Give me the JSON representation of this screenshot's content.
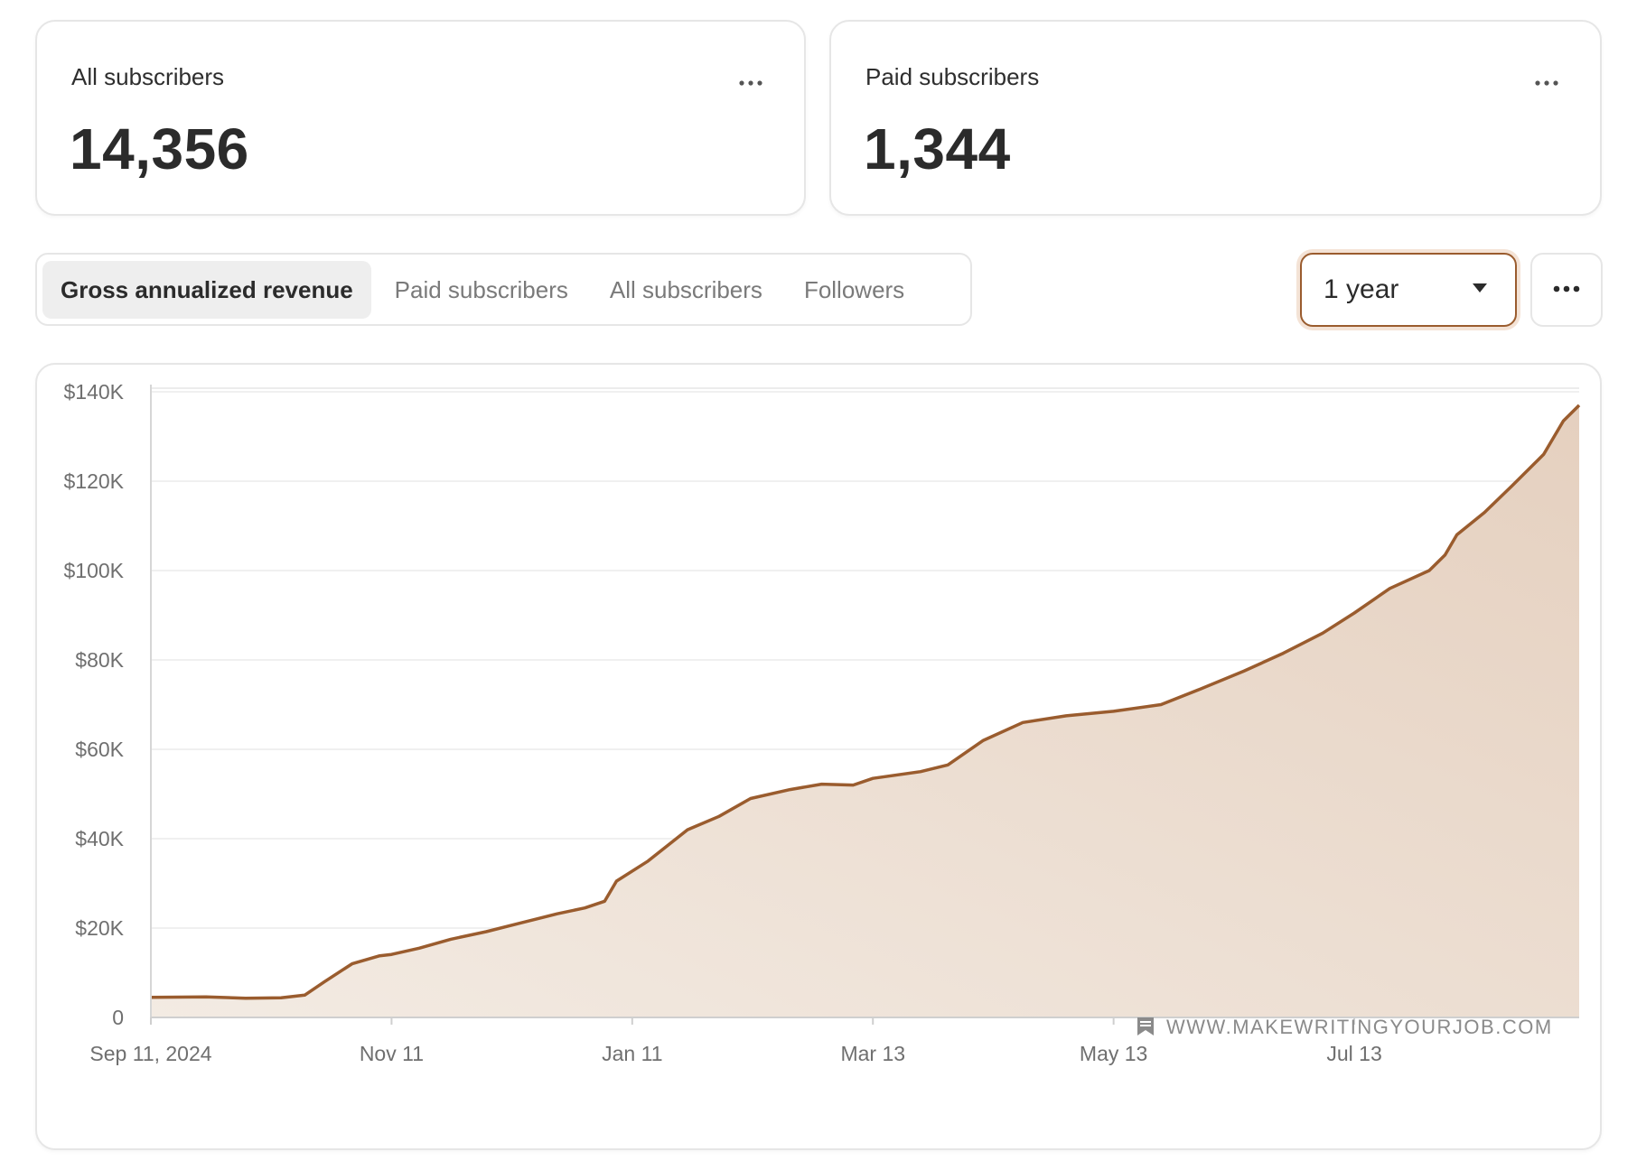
{
  "stats": [
    {
      "title": "All subscribers",
      "value": "14,356"
    },
    {
      "title": "Paid subscribers",
      "value": "1,344"
    }
  ],
  "tabs": [
    {
      "label": "Gross annualized revenue",
      "active": true
    },
    {
      "label": "Paid subscribers",
      "active": false
    },
    {
      "label": "All subscribers",
      "active": false
    },
    {
      "label": "Followers",
      "active": false
    }
  ],
  "range_select": {
    "value": "1 year"
  },
  "colors": {
    "line": "#9a5c2e",
    "fill_top": "#e5d0bf",
    "fill_bottom": "#f3ebe3",
    "grid": "#ececec",
    "accent_border": "#9a5c2e"
  },
  "watermark": "WWW.MAKEWRITINGYOURJOB.COM",
  "chart_data": {
    "type": "area",
    "ylim": [
      0,
      140000
    ],
    "y_ticks": [
      0,
      20000,
      40000,
      60000,
      80000,
      100000,
      120000,
      140000
    ],
    "y_tick_labels": [
      "0",
      "$20K",
      "$40K",
      "$60K",
      "$80K",
      "$100K",
      "$120K",
      "$140K"
    ],
    "x_range": [
      "2024-09-11",
      "2025-09-08"
    ],
    "x_ticks": [
      "2024-09-11",
      "2024-11-11",
      "2025-01-11",
      "2025-03-13",
      "2025-05-13",
      "2025-07-13"
    ],
    "x_tick_labels": [
      "Sep 11, 2024",
      "Nov 11",
      "Jan 11",
      "Mar 13",
      "May 13",
      "Jul 13"
    ],
    "grid": true,
    "series": [
      {
        "points": [
          [
            "2024-09-11",
            4500
          ],
          [
            "2024-09-25",
            4600
          ],
          [
            "2024-10-05",
            4300
          ],
          [
            "2024-10-14",
            4400
          ],
          [
            "2024-10-20",
            5000
          ],
          [
            "2024-10-25",
            8000
          ],
          [
            "2024-11-01",
            12000
          ],
          [
            "2024-11-08",
            13800
          ],
          [
            "2024-11-11",
            14100
          ],
          [
            "2024-11-18",
            15500
          ],
          [
            "2024-11-26",
            17500
          ],
          [
            "2024-12-05",
            19200
          ],
          [
            "2024-12-14",
            21200
          ],
          [
            "2024-12-23",
            23200
          ],
          [
            "2024-12-30",
            24500
          ],
          [
            "2025-01-04",
            26000
          ],
          [
            "2025-01-07",
            30500
          ],
          [
            "2025-01-15",
            35000
          ],
          [
            "2025-01-25",
            42000
          ],
          [
            "2025-02-02",
            45000
          ],
          [
            "2025-02-10",
            49000
          ],
          [
            "2025-02-20",
            51000
          ],
          [
            "2025-02-28",
            52200
          ],
          [
            "2025-03-08",
            52000
          ],
          [
            "2025-03-13",
            53500
          ],
          [
            "2025-03-25",
            55000
          ],
          [
            "2025-04-01",
            56500
          ],
          [
            "2025-04-10",
            62000
          ],
          [
            "2025-04-20",
            66000
          ],
          [
            "2025-05-01",
            67500
          ],
          [
            "2025-05-13",
            68500
          ],
          [
            "2025-05-25",
            70000
          ],
          [
            "2025-06-04",
            73500
          ],
          [
            "2025-06-15",
            77500
          ],
          [
            "2025-06-25",
            81500
          ],
          [
            "2025-07-05",
            86000
          ],
          [
            "2025-07-13",
            90500
          ],
          [
            "2025-07-22",
            96000
          ],
          [
            "2025-08-01",
            100000
          ],
          [
            "2025-08-05",
            103500
          ],
          [
            "2025-08-08",
            108000
          ],
          [
            "2025-08-15",
            113000
          ],
          [
            "2025-08-22",
            119000
          ],
          [
            "2025-08-30",
            126000
          ],
          [
            "2025-09-04",
            133500
          ],
          [
            "2025-09-08",
            137000
          ]
        ]
      }
    ]
  }
}
